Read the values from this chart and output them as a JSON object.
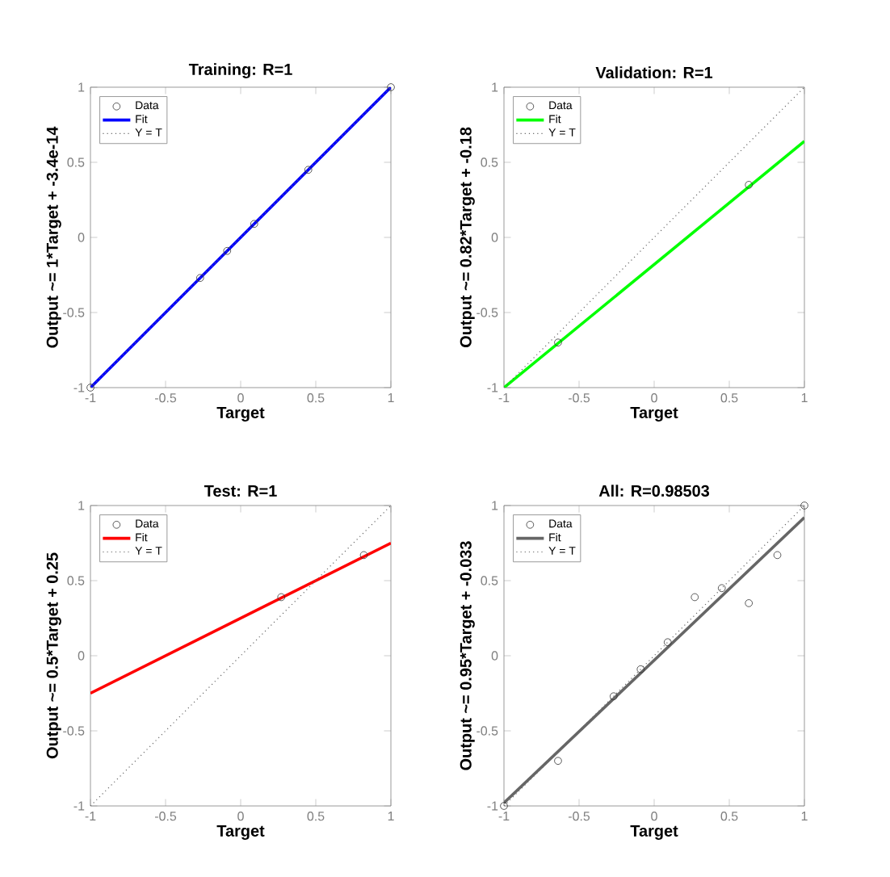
{
  "chart_data": [
    {
      "type": "scatter",
      "title": "Training: R=1",
      "xlabel": "Target",
      "ylabel": "Output ~= 1*Target + -3.4e-14",
      "xlim": [
        -1,
        1
      ],
      "ylim": [
        -1,
        1
      ],
      "xticks": [
        -1,
        -0.5,
        0,
        0.5,
        1
      ],
      "yticks": [
        -1,
        -0.5,
        0,
        0.5,
        1
      ],
      "legend": "top left",
      "series": [
        {
          "name": "Data",
          "marker": "circle",
          "color": "#333333",
          "x": [
            -1,
            -0.27,
            -0.09,
            0.09,
            0.45,
            1
          ],
          "values": [
            -1,
            -0.27,
            -0.09,
            0.09,
            0.45,
            1
          ]
        },
        {
          "name": "Fit",
          "type": "line",
          "color": "#0000ff",
          "x": [
            -1,
            1
          ],
          "values": [
            -1,
            1
          ]
        },
        {
          "name": "Y = T",
          "type": "line",
          "line_style": "dotted",
          "color": "#666666",
          "x": [
            -1,
            1
          ],
          "values": [
            -1,
            1
          ]
        }
      ]
    },
    {
      "type": "scatter",
      "title": "Validation: R=1",
      "xlabel": "Target",
      "ylabel": "Output ~= 0.82*Target + -0.18",
      "xlim": [
        -1,
        1
      ],
      "ylim": [
        -1,
        1
      ],
      "xticks": [
        -1,
        -0.5,
        0,
        0.5,
        1
      ],
      "yticks": [
        -1,
        -0.5,
        0,
        0.5,
        1
      ],
      "legend": "top left",
      "series": [
        {
          "name": "Data",
          "marker": "circle",
          "color": "#333333",
          "x": [
            -0.64,
            0.63
          ],
          "values": [
            -0.7,
            0.35
          ]
        },
        {
          "name": "Fit",
          "type": "line",
          "color": "#00ff00",
          "x": [
            -1,
            1
          ],
          "values": [
            -1,
            0.64
          ]
        },
        {
          "name": "Y = T",
          "type": "line",
          "line_style": "dotted",
          "color": "#666666",
          "x": [
            -1,
            1
          ],
          "values": [
            -1,
            1
          ]
        }
      ]
    },
    {
      "type": "scatter",
      "title": "Test: R=1",
      "xlabel": "Target",
      "ylabel": "Output ~= 0.5*Target + 0.25",
      "xlim": [
        -1,
        1
      ],
      "ylim": [
        -1,
        1
      ],
      "xticks": [
        -1,
        -0.5,
        0,
        0.5,
        1
      ],
      "yticks": [
        -1,
        -0.5,
        0,
        0.5,
        1
      ],
      "legend": "top left",
      "series": [
        {
          "name": "Data",
          "marker": "circle",
          "color": "#333333",
          "x": [
            0.27,
            0.82
          ],
          "values": [
            0.39,
            0.67
          ]
        },
        {
          "name": "Fit",
          "type": "line",
          "color": "#ff0000",
          "x": [
            -1,
            1
          ],
          "values": [
            -0.25,
            0.75
          ]
        },
        {
          "name": "Y = T",
          "type": "line",
          "line_style": "dotted",
          "color": "#666666",
          "x": [
            -1,
            1
          ],
          "values": [
            -1,
            1
          ]
        }
      ]
    },
    {
      "type": "scatter",
      "title": "All: R=0.98503",
      "xlabel": "Target",
      "ylabel": "Output ~= 0.95*Target + -0.033",
      "xlim": [
        -1,
        1
      ],
      "ylim": [
        -1,
        1
      ],
      "xticks": [
        -1,
        -0.5,
        0,
        0.5,
        1
      ],
      "yticks": [
        -1,
        -0.5,
        0,
        0.5,
        1
      ],
      "legend": "top left",
      "series": [
        {
          "name": "Data",
          "marker": "circle",
          "color": "#333333",
          "x": [
            -1,
            -0.64,
            -0.27,
            -0.09,
            0.09,
            0.27,
            0.45,
            0.63,
            0.82,
            1
          ],
          "values": [
            -1,
            -0.7,
            -0.27,
            -0.09,
            0.09,
            0.39,
            0.45,
            0.35,
            0.67,
            1
          ]
        },
        {
          "name": "Fit",
          "type": "line",
          "color": "#666666",
          "x": [
            -1,
            1
          ],
          "values": [
            -0.98,
            0.92
          ]
        },
        {
          "name": "Y = T",
          "type": "line",
          "line_style": "dotted",
          "color": "#666666",
          "x": [
            -1,
            1
          ],
          "values": [
            -1,
            1
          ]
        }
      ]
    }
  ]
}
